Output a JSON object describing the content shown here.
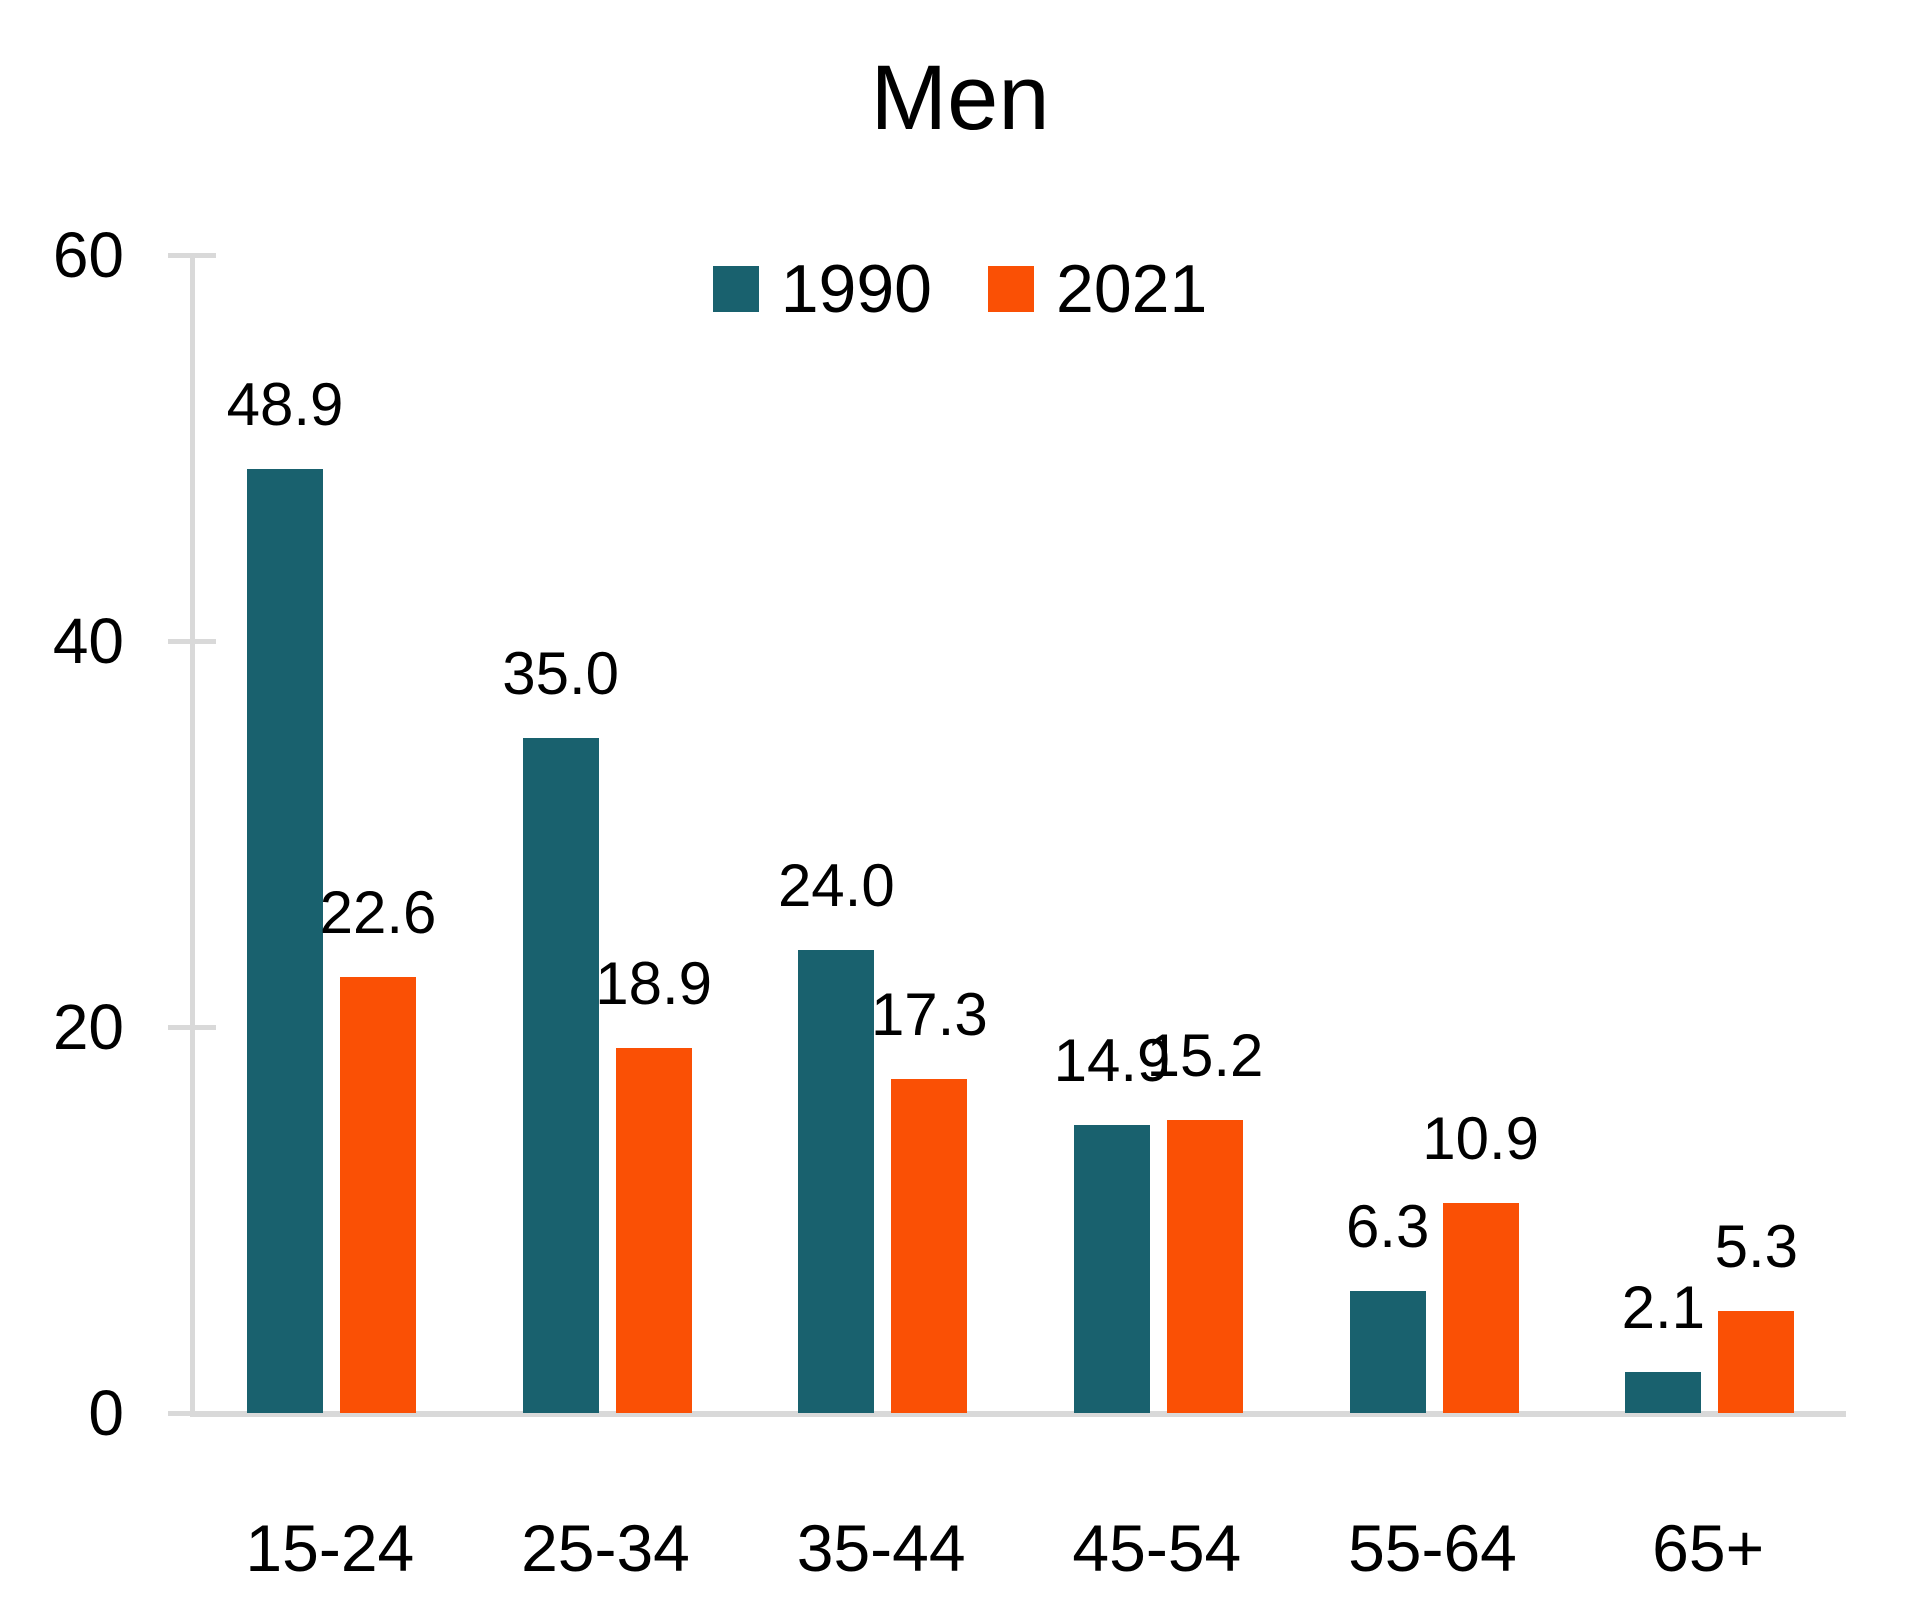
{
  "page": {
    "background": "#ffffff"
  },
  "chart_data": {
    "type": "bar",
    "title": "Men",
    "categories": [
      "15-24",
      "25-34",
      "35-44",
      "45-54",
      "55-64",
      "65+"
    ],
    "series": [
      {
        "name": "1990",
        "color": "#19616e",
        "values": [
          48.9,
          35.0,
          24.0,
          14.9,
          6.3,
          2.1
        ],
        "labels": [
          "48.9",
          "35.0",
          "24.0",
          "14.9",
          "6.3",
          "2.1"
        ]
      },
      {
        "name": "2021",
        "color": "#fa5005",
        "values": [
          22.6,
          18.9,
          17.3,
          15.2,
          10.9,
          5.3
        ],
        "labels": [
          "22.6",
          "18.9",
          "17.3",
          "15.2",
          "10.9",
          "5.3"
        ]
      }
    ],
    "ylim": [
      0,
      60
    ],
    "yticks": [
      60,
      40,
      20,
      0
    ],
    "ytick_labels": [
      "60",
      "40",
      "20",
      "0"
    ],
    "grid": false,
    "legend_position": "top-center",
    "axis_color": "#d9d9d9",
    "text_color": "#000000",
    "background_color": "#ffffff"
  }
}
